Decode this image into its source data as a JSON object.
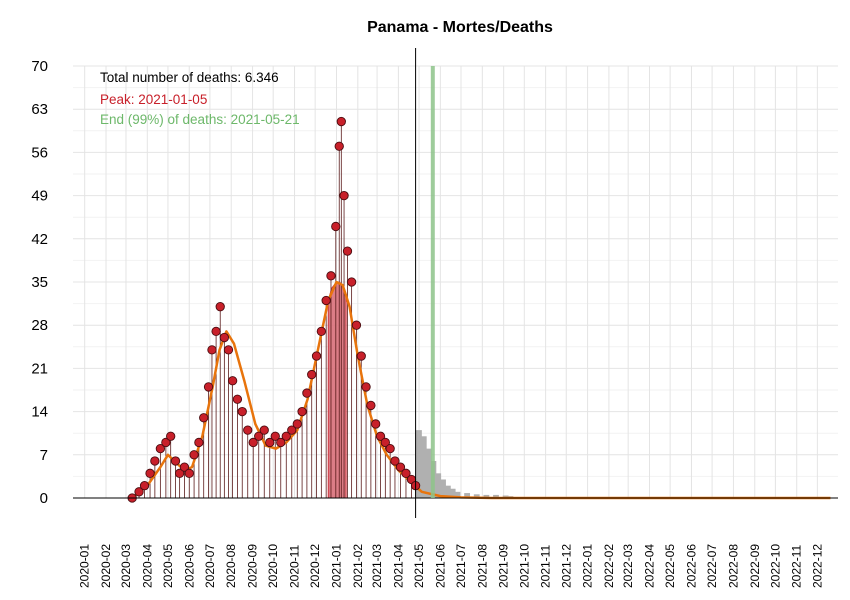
{
  "chart_data": {
    "type": "line",
    "title": "Panama - Mortes/Deaths",
    "xlabel": "",
    "ylabel": "",
    "ylim": [
      0,
      70
    ],
    "yticks": [
      0,
      7,
      14,
      21,
      28,
      35,
      42,
      49,
      56,
      63,
      70
    ],
    "xlim": [
      "2019-12-15",
      "2022-12-31"
    ],
    "xticks": [
      "2020-01",
      "2020-02",
      "2020-03",
      "2020-04",
      "2020-05",
      "2020-06",
      "2020-07",
      "2020-08",
      "2020-09",
      "2020-10",
      "2020-11",
      "2020-12",
      "2021-01",
      "2021-02",
      "2021-03",
      "2021-04",
      "2021-05",
      "2021-06",
      "2021-07",
      "2021-08",
      "2021-09",
      "2021-10",
      "2021-11",
      "2021-12",
      "2022-01",
      "2022-02",
      "2022-03",
      "2022-04",
      "2022-05",
      "2022-06",
      "2022-07",
      "2022-08",
      "2022-09",
      "2022-10",
      "2022-11",
      "2022-12"
    ],
    "grid": true,
    "annotations": {
      "total": "Total number of deaths: 6.346",
      "peak": "Peak: 2021-01-05",
      "end": "End (99%) of deaths: 2021-05-21"
    },
    "last_observed_date": "2021-04-26",
    "peak_date": "2021-01-05",
    "end_date": "2021-05-21",
    "colors": {
      "observed": "#c8202a",
      "smooth": "#e8740c",
      "peak_area": "#d9707a",
      "end_line": "#8ec48a",
      "forecast": "#b0b0b0"
    },
    "series": [
      {
        "name": "observed daily deaths",
        "kind": "points",
        "points": [
          [
            "2020-03-10",
            0
          ],
          [
            "2020-03-20",
            1
          ],
          [
            "2020-03-28",
            2
          ],
          [
            "2020-04-05",
            4
          ],
          [
            "2020-04-12",
            6
          ],
          [
            "2020-04-20",
            8
          ],
          [
            "2020-04-28",
            9
          ],
          [
            "2020-05-05",
            10
          ],
          [
            "2020-05-12",
            6
          ],
          [
            "2020-05-18",
            4
          ],
          [
            "2020-05-25",
            5
          ],
          [
            "2020-06-01",
            4
          ],
          [
            "2020-06-08",
            7
          ],
          [
            "2020-06-15",
            9
          ],
          [
            "2020-06-22",
            13
          ],
          [
            "2020-06-29",
            18
          ],
          [
            "2020-07-04",
            24
          ],
          [
            "2020-07-10",
            27
          ],
          [
            "2020-07-16",
            31
          ],
          [
            "2020-07-22",
            26
          ],
          [
            "2020-07-28",
            24
          ],
          [
            "2020-08-03",
            19
          ],
          [
            "2020-08-10",
            16
          ],
          [
            "2020-08-17",
            14
          ],
          [
            "2020-08-25",
            11
          ],
          [
            "2020-09-02",
            9
          ],
          [
            "2020-09-10",
            10
          ],
          [
            "2020-09-18",
            11
          ],
          [
            "2020-09-26",
            9
          ],
          [
            "2020-10-04",
            10
          ],
          [
            "2020-10-12",
            9
          ],
          [
            "2020-10-20",
            10
          ],
          [
            "2020-10-28",
            11
          ],
          [
            "2020-11-05",
            12
          ],
          [
            "2020-11-12",
            14
          ],
          [
            "2020-11-19",
            17
          ],
          [
            "2020-11-26",
            20
          ],
          [
            "2020-12-03",
            23
          ],
          [
            "2020-12-10",
            27
          ],
          [
            "2020-12-17",
            32
          ],
          [
            "2020-12-24",
            36
          ],
          [
            "2020-12-31",
            44
          ],
          [
            "2021-01-05",
            57
          ],
          [
            "2021-01-08",
            61
          ],
          [
            "2021-01-12",
            49
          ],
          [
            "2021-01-17",
            40
          ],
          [
            "2021-01-23",
            35
          ],
          [
            "2021-01-30",
            28
          ],
          [
            "2021-02-06",
            23
          ],
          [
            "2021-02-13",
            18
          ],
          [
            "2021-02-20",
            15
          ],
          [
            "2021-02-27",
            12
          ],
          [
            "2021-03-06",
            10
          ],
          [
            "2021-03-13",
            9
          ],
          [
            "2021-03-20",
            8
          ],
          [
            "2021-03-27",
            6
          ],
          [
            "2021-04-04",
            5
          ],
          [
            "2021-04-12",
            4
          ],
          [
            "2021-04-20",
            3
          ],
          [
            "2021-04-26",
            2
          ]
        ]
      },
      {
        "name": "smoothed trend",
        "kind": "line",
        "points": [
          [
            "2020-03-10",
            0
          ],
          [
            "2020-04-01",
            2
          ],
          [
            "2020-04-20",
            5
          ],
          [
            "2020-05-01",
            7
          ],
          [
            "2020-05-10",
            6
          ],
          [
            "2020-05-25",
            4.5
          ],
          [
            "2020-06-05",
            5
          ],
          [
            "2020-06-20",
            10
          ],
          [
            "2020-07-05",
            18
          ],
          [
            "2020-07-15",
            24
          ],
          [
            "2020-07-25",
            27
          ],
          [
            "2020-08-05",
            25
          ],
          [
            "2020-08-20",
            19
          ],
          [
            "2020-09-05",
            12
          ],
          [
            "2020-09-20",
            8.5
          ],
          [
            "2020-10-05",
            8
          ],
          [
            "2020-10-20",
            9
          ],
          [
            "2020-11-05",
            11
          ],
          [
            "2020-11-20",
            16
          ],
          [
            "2020-12-05",
            24
          ],
          [
            "2020-12-20",
            32
          ],
          [
            "2021-01-01",
            35
          ],
          [
            "2021-01-10",
            34.5
          ],
          [
            "2021-01-20",
            31
          ],
          [
            "2021-02-01",
            23
          ],
          [
            "2021-02-15",
            15
          ],
          [
            "2021-03-01",
            10
          ],
          [
            "2021-03-15",
            7
          ],
          [
            "2021-04-01",
            4.5
          ],
          [
            "2021-04-20",
            2.5
          ],
          [
            "2021-05-05",
            1
          ],
          [
            "2021-06-01",
            0.3
          ],
          [
            "2021-07-01",
            0.1
          ],
          [
            "2021-08-15",
            0
          ],
          [
            "2022-12-20",
            0
          ]
        ]
      },
      {
        "name": "forecast",
        "kind": "bars",
        "points": [
          [
            "2021-05-01",
            11
          ],
          [
            "2021-05-08",
            10
          ],
          [
            "2021-05-15",
            8
          ],
          [
            "2021-05-22",
            6
          ],
          [
            "2021-05-29",
            4
          ],
          [
            "2021-06-05",
            3
          ],
          [
            "2021-06-12",
            2
          ],
          [
            "2021-06-19",
            1.5
          ],
          [
            "2021-06-26",
            1
          ],
          [
            "2021-07-10",
            0.8
          ],
          [
            "2021-07-24",
            0.6
          ],
          [
            "2021-08-07",
            0.5
          ],
          [
            "2021-08-21",
            0.5
          ],
          [
            "2021-09-04",
            0.4
          ],
          [
            "2021-09-11",
            0.3
          ]
        ]
      },
      {
        "name": "peak period",
        "kind": "area",
        "points": [
          [
            "2020-12-20",
            32
          ],
          [
            "2020-12-25",
            34
          ],
          [
            "2021-01-01",
            35
          ],
          [
            "2021-01-05",
            35
          ],
          [
            "2021-01-10",
            34.5
          ],
          [
            "2021-01-15",
            33
          ]
        ]
      }
    ]
  }
}
